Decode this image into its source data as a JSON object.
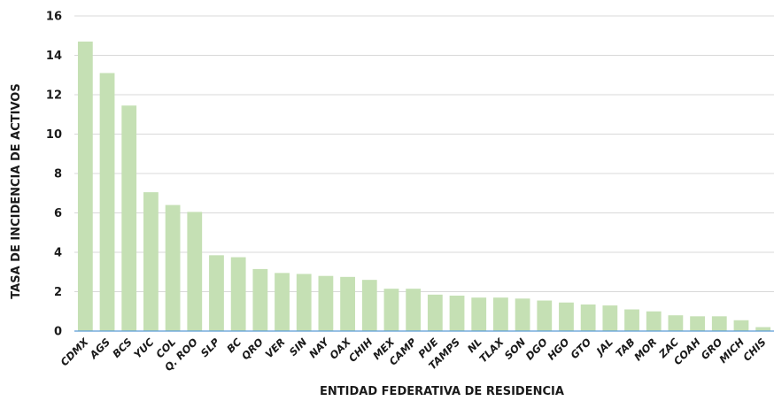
{
  "chart_data": {
    "type": "bar",
    "title": "",
    "xlabel": "ENTIDAD FEDERATIVA DE RESIDENCIA",
    "ylabel": "TASA DE INCIDENCIA DE ACTIVOS",
    "ylim": [
      0,
      16
    ],
    "yticks": [
      0,
      2,
      4,
      6,
      8,
      10,
      12,
      14,
      16
    ],
    "grid": true,
    "legend": "none",
    "bar_color": "#c5e0b4",
    "categories": [
      "CDMX",
      "AGS",
      "BCS",
      "YUC",
      "COL",
      "Q. ROO",
      "SLP",
      "BC",
      "QRO",
      "VER",
      "SIN",
      "NAY",
      "OAX",
      "CHIH",
      "MEX",
      "CAMP",
      "PUE",
      "TAMPS",
      "NL",
      "TLAX",
      "SON",
      "DGO",
      "HGO",
      "GTO",
      "JAL",
      "TAB",
      "MOR",
      "ZAC",
      "COAH",
      "GRO",
      "MICH",
      "CHIS"
    ],
    "values": [
      14.7,
      13.1,
      11.45,
      7.05,
      6.4,
      6.05,
      3.85,
      3.75,
      3.15,
      2.95,
      2.9,
      2.8,
      2.75,
      2.6,
      2.15,
      2.15,
      1.85,
      1.8,
      1.7,
      1.7,
      1.65,
      1.55,
      1.45,
      1.35,
      1.3,
      1.1,
      1.0,
      0.8,
      0.75,
      0.75,
      0.55,
      0.2
    ]
  }
}
